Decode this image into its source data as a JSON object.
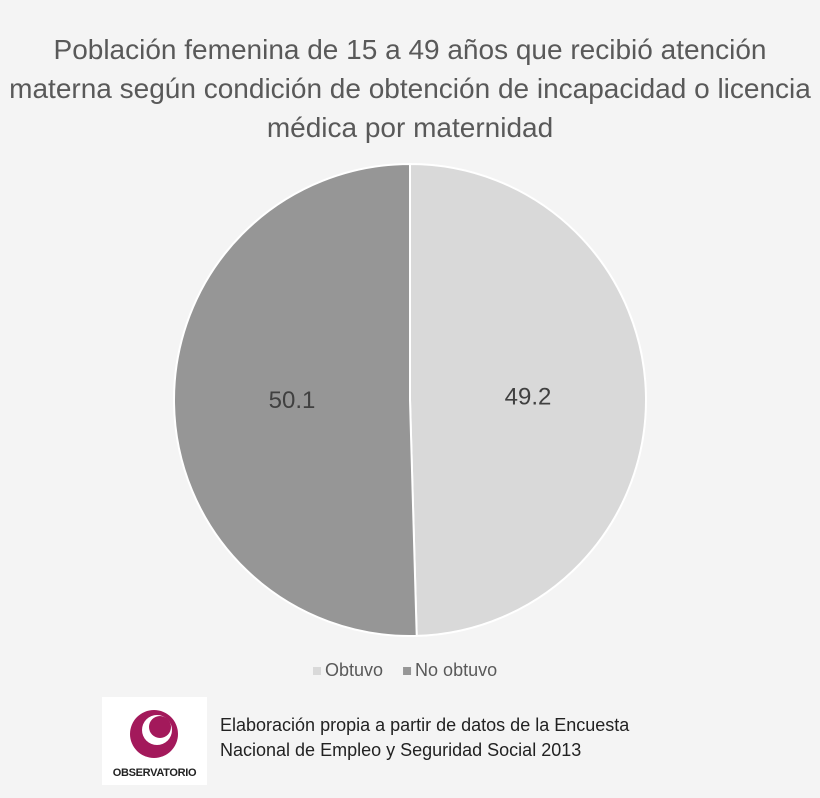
{
  "chart_data": {
    "type": "pie",
    "title": "Población femenina de 15 a 49 años que recibió atención materna según condición de obtención de incapacidad o licencia médica por maternidad",
    "categories": [
      "Obtuvo",
      "No obtuvo"
    ],
    "values": [
      49.2,
      50.1
    ],
    "colors": [
      "#d9d9d9",
      "#969696"
    ],
    "legend": "bottom"
  },
  "footer": {
    "logo_text": "OBSERVATORIO",
    "source": "Elaboración propia a partir de datos de la Encuesta Nacional de Empleo y Seguridad Social 2013"
  }
}
